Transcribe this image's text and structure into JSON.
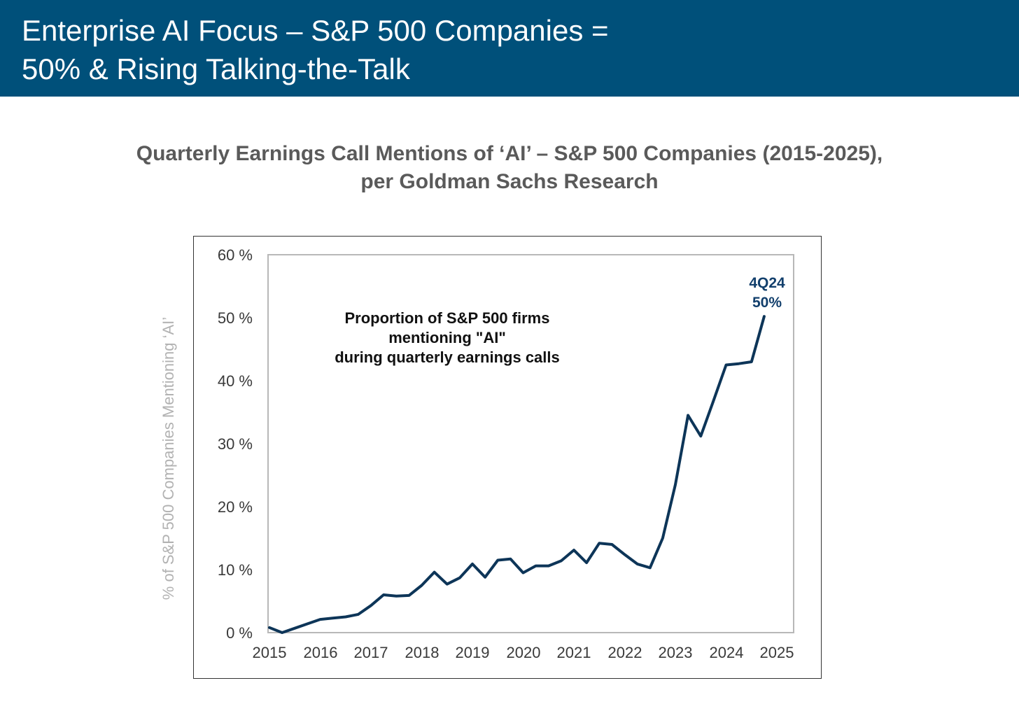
{
  "header": {
    "title_line1": "Enterprise AI Focus – S&P 500 Companies =",
    "title_line2": "50% & Rising Talking-the-Talk"
  },
  "subtitle": {
    "line1": "Quarterly Earnings Call Mentions of ‘AI’ – S&P 500 Companies (2015-2025),",
    "line2": "per Goldman Sachs Research"
  },
  "colors": {
    "header_bg": "#00507a",
    "line": "#0d3558",
    "subtitle": "#5a5a5a",
    "ylabel": "#b2b2b2"
  },
  "chart_data": {
    "type": "line",
    "title": "Quarterly Earnings Call Mentions of ‘AI’ – S&P 500 Companies (2015-2025), per Goldman Sachs Research",
    "xlabel": "",
    "ylabel": "% of S&P 500 Companies Mentioning ‘AI’",
    "xlim": [
      2015,
      2025
    ],
    "ylim": [
      0,
      60
    ],
    "xticks": [
      2015,
      2016,
      2017,
      2018,
      2019,
      2020,
      2021,
      2022,
      2023,
      2024,
      2025
    ],
    "xtick_labels": [
      "2015",
      "2016",
      "2017",
      "2018",
      "2019",
      "2020",
      "2021",
      "2022",
      "2023",
      "2024",
      "2025"
    ],
    "yticks": [
      0,
      10,
      20,
      30,
      40,
      50,
      60
    ],
    "ytick_labels": [
      "0 %",
      "10 %",
      "20 %",
      "30 %",
      "40 %",
      "50 %",
      "60 %"
    ],
    "grid": false,
    "inner_annotation": {
      "line1": "Proportion of S&P 500 firms",
      "line2": "mentioning \"AI\"",
      "line3": "during quarterly earnings calls"
    },
    "callout": {
      "line1": "4Q24",
      "line2": "50%"
    },
    "series": [
      {
        "name": "Proportion of S&P 500 firms mentioning \"AI\"",
        "x": [
          2015.0,
          2015.25,
          2015.5,
          2015.75,
          2016.0,
          2016.25,
          2016.5,
          2016.75,
          2017.0,
          2017.25,
          2017.5,
          2017.75,
          2018.0,
          2018.25,
          2018.5,
          2018.75,
          2019.0,
          2019.25,
          2019.5,
          2019.75,
          2020.0,
          2020.25,
          2020.5,
          2020.75,
          2021.0,
          2021.25,
          2021.5,
          2021.75,
          2022.0,
          2022.25,
          2022.5,
          2022.75,
          2023.0,
          2023.25,
          2023.5,
          2023.75,
          2024.0,
          2024.25,
          2024.5,
          2024.75
        ],
        "values": [
          0.8,
          0.0,
          0.7,
          1.4,
          2.1,
          2.3,
          2.5,
          2.9,
          4.3,
          6.0,
          5.8,
          5.9,
          7.5,
          9.6,
          7.7,
          8.7,
          10.9,
          8.8,
          11.5,
          11.7,
          9.5,
          10.6,
          10.6,
          11.4,
          13.1,
          11.1,
          14.2,
          14.0,
          12.4,
          10.9,
          10.3,
          15.0,
          23.5,
          34.5,
          31.2,
          36.8,
          42.5,
          42.7,
          43.0,
          50.2
        ]
      }
    ]
  }
}
